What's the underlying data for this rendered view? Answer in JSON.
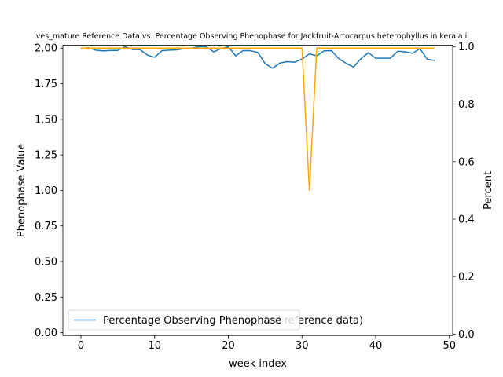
{
  "chart_data": {
    "type": "line",
    "title": "ves_mature Reference Data vs. Percentage Observing Phenophase for Jackfruit-Artocarpus heterophyllus in kerala i",
    "xlabel": "week index",
    "ylabel_left": "Phenophase Value",
    "ylabel_right": "Percent",
    "xlim": [
      -2.45,
      50.45
    ],
    "ylim_left": [
      -0.02,
      2.02
    ],
    "ylim_right": [
      -0.005,
      1.005
    ],
    "x_ticks": [
      0,
      10,
      20,
      30,
      40,
      50
    ],
    "x_tick_labels": [
      "0",
      "10",
      "20",
      "30",
      "40",
      "50"
    ],
    "y_left_ticks": [
      0,
      0.25,
      0.5,
      0.75,
      1.0,
      1.25,
      1.5,
      1.75,
      2.0
    ],
    "y_left_tick_labels": [
      "0.00",
      "0.25",
      "0.50",
      "0.75",
      "1.00",
      "1.25",
      "1.50",
      "1.75",
      "2.00"
    ],
    "y_right_ticks": [
      0,
      0.2,
      0.4,
      0.6,
      0.8,
      1.0
    ],
    "y_right_tick_labels": [
      "0.0",
      "0.2",
      "0.4",
      "0.6",
      "0.8",
      "1.0"
    ],
    "legend": {
      "placement": "lower-left",
      "entries": [
        {
          "label": "Percentage Observing Phenophase",
          "color": "#1f77b4"
        }
      ],
      "occluded_text": "ted reference data)"
    },
    "series": [
      {
        "axis": "right",
        "color": "#1f77b4",
        "x": [
          0,
          1,
          2,
          3,
          4,
          5,
          6,
          7,
          8,
          9,
          10,
          11,
          12,
          13,
          14,
          15,
          16,
          17,
          18,
          19,
          20,
          21,
          22,
          23,
          24,
          25,
          26,
          27,
          28,
          29,
          30,
          31,
          32,
          33,
          34,
          35,
          36,
          37,
          38,
          39,
          40,
          41,
          42,
          43,
          44,
          45,
          46,
          47,
          48
        ],
        "values": [
          0.993,
          0.996,
          0.988,
          0.985,
          0.987,
          0.987,
          1.0,
          0.99,
          0.99,
          0.971,
          0.963,
          0.986,
          0.988,
          0.989,
          0.993,
          0.995,
          1.0,
          1.0,
          0.982,
          0.993,
          1.0,
          0.968,
          0.986,
          0.986,
          0.98,
          0.941,
          0.925,
          0.943,
          0.948,
          0.946,
          0.957,
          0.975,
          0.968,
          0.985,
          0.986,
          0.958,
          0.942,
          0.929,
          0.958,
          0.979,
          0.96,
          0.96,
          0.96,
          0.984,
          0.982,
          0.977,
          0.993,
          0.956,
          0.952
        ]
      },
      {
        "axis": "left",
        "color": "#ffa500",
        "x": [
          0,
          1,
          2,
          3,
          4,
          5,
          6,
          7,
          8,
          9,
          10,
          11,
          12,
          13,
          14,
          15,
          16,
          17,
          18,
          19,
          20,
          21,
          22,
          23,
          24,
          25,
          26,
          27,
          28,
          29,
          30,
          31,
          32,
          33,
          34,
          35,
          36,
          37,
          38,
          39,
          40,
          41,
          42,
          43,
          44,
          45,
          46,
          47,
          48
        ],
        "values": [
          2,
          2,
          2,
          2,
          2,
          2,
          2,
          2,
          2,
          2,
          2,
          2,
          2,
          2,
          2,
          2,
          2,
          2,
          2,
          2,
          2,
          2,
          2,
          2,
          2,
          2,
          2,
          2,
          2,
          2,
          2,
          1,
          2,
          2,
          2,
          2,
          2,
          2,
          2,
          2,
          2,
          2,
          2,
          2,
          2,
          2,
          2,
          2,
          2
        ]
      }
    ]
  }
}
